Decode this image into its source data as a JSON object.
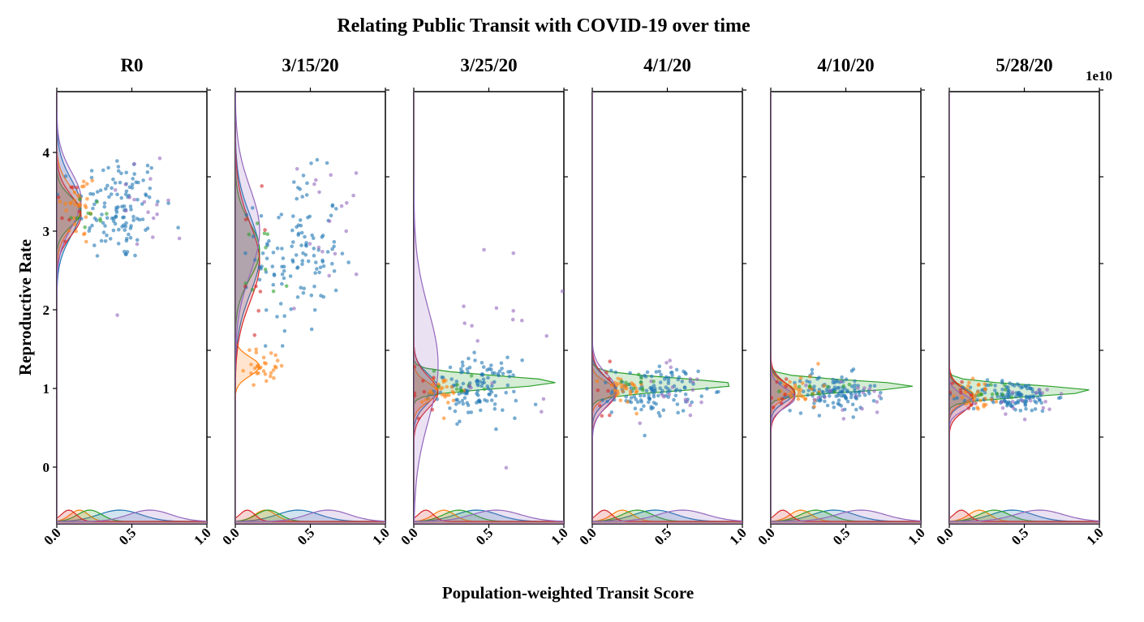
{
  "chart_data": {
    "type": "scatter",
    "title": "Relating Public Transit with COVID-19 over time",
    "xlabel": "Population-weighted Transit Score",
    "ylabel": "Reproductive Rate",
    "xlim": [
      0.0,
      1.0
    ],
    "ylim": [
      -0.72,
      4.8
    ],
    "x_ticks": [
      0.0,
      0.5,
      1.0
    ],
    "x_tick_labels": [
      "0.0",
      "0.5",
      "1.0"
    ],
    "y_ticks": [
      0,
      1,
      2,
      3,
      4
    ],
    "y_tick_labels": [
      "0",
      "1",
      "2",
      "3",
      "4"
    ],
    "offset_text": "1e10",
    "grid": false,
    "legend": "none",
    "series_colors": [
      "#1f77b4",
      "#ff7f0e",
      "#2ca02c",
      "#d62728",
      "#9467bd"
    ],
    "panels": [
      {
        "title": "R0",
        "groups": [
          {
            "x_mean": 0.42,
            "x_sd": 0.14,
            "y_mean": 3.3,
            "y_sd": 0.35,
            "n": 120
          },
          {
            "x_mean": 0.15,
            "x_sd": 0.06,
            "y_mean": 3.3,
            "y_sd": 0.25,
            "n": 30
          },
          {
            "x_mean": 0.22,
            "x_sd": 0.08,
            "y_mean": 3.25,
            "y_sd": 0.18,
            "n": 10
          },
          {
            "x_mean": 0.08,
            "x_sd": 0.05,
            "y_mean": 3.2,
            "y_sd": 0.25,
            "n": 8
          },
          {
            "x_mean": 0.62,
            "x_sd": 0.14,
            "y_mean": 3.4,
            "y_sd": 0.35,
            "n": 18
          }
        ]
      },
      {
        "title": "3/15/20",
        "groups": [
          {
            "x_mean": 0.42,
            "x_sd": 0.14,
            "y_mean": 2.7,
            "y_sd": 0.5,
            "n": 120
          },
          {
            "x_mean": 0.2,
            "x_sd": 0.07,
            "y_mean": 1.28,
            "y_sd": 0.12,
            "n": 30
          },
          {
            "x_mean": 0.22,
            "x_sd": 0.08,
            "y_mean": 2.75,
            "y_sd": 0.35,
            "n": 10
          },
          {
            "x_mean": 0.08,
            "x_sd": 0.05,
            "y_mean": 2.6,
            "y_sd": 0.5,
            "n": 8
          },
          {
            "x_mean": 0.62,
            "x_sd": 0.14,
            "y_mean": 3.0,
            "y_sd": 0.55,
            "n": 18
          }
        ]
      },
      {
        "title": "3/25/20",
        "groups": [
          {
            "x_mean": 0.42,
            "x_sd": 0.14,
            "y_mean": 1.0,
            "y_sd": 0.18,
            "n": 120
          },
          {
            "x_mean": 0.2,
            "x_sd": 0.07,
            "y_mean": 0.95,
            "y_sd": 0.12,
            "n": 30
          },
          {
            "x_mean": 0.3,
            "x_sd": 0.1,
            "y_mean": 1.08,
            "y_sd": 0.08,
            "n": 10
          },
          {
            "x_mean": 0.08,
            "x_sd": 0.05,
            "y_mean": 0.95,
            "y_sd": 0.2,
            "n": 8
          },
          {
            "x_mean": 0.55,
            "x_sd": 0.16,
            "y_mean": 1.3,
            "y_sd": 0.7,
            "n": 18
          }
        ]
      },
      {
        "title": "4/1/20",
        "groups": [
          {
            "x_mean": 0.42,
            "x_sd": 0.14,
            "y_mean": 0.98,
            "y_sd": 0.15,
            "n": 120
          },
          {
            "x_mean": 0.2,
            "x_sd": 0.07,
            "y_mean": 0.98,
            "y_sd": 0.1,
            "n": 30
          },
          {
            "x_mean": 0.3,
            "x_sd": 0.1,
            "y_mean": 1.05,
            "y_sd": 0.08,
            "n": 10
          },
          {
            "x_mean": 0.08,
            "x_sd": 0.05,
            "y_mean": 0.95,
            "y_sd": 0.18,
            "n": 8
          },
          {
            "x_mean": 0.6,
            "x_sd": 0.16,
            "y_mean": 0.98,
            "y_sd": 0.2,
            "n": 18
          }
        ]
      },
      {
        "title": "4/10/20",
        "groups": [
          {
            "x_mean": 0.42,
            "x_sd": 0.14,
            "y_mean": 0.95,
            "y_sd": 0.12,
            "n": 120
          },
          {
            "x_mean": 0.2,
            "x_sd": 0.07,
            "y_mean": 0.97,
            "y_sd": 0.1,
            "n": 30
          },
          {
            "x_mean": 0.3,
            "x_sd": 0.1,
            "y_mean": 1.03,
            "y_sd": 0.07,
            "n": 10
          },
          {
            "x_mean": 0.08,
            "x_sd": 0.05,
            "y_mean": 0.92,
            "y_sd": 0.15,
            "n": 8
          },
          {
            "x_mean": 0.6,
            "x_sd": 0.16,
            "y_mean": 0.88,
            "y_sd": 0.12,
            "n": 18
          }
        ]
      },
      {
        "title": "5/28/20",
        "groups": [
          {
            "x_mean": 0.42,
            "x_sd": 0.14,
            "y_mean": 0.9,
            "y_sd": 0.1,
            "n": 120
          },
          {
            "x_mean": 0.2,
            "x_sd": 0.07,
            "y_mean": 0.92,
            "y_sd": 0.1,
            "n": 30
          },
          {
            "x_mean": 0.3,
            "x_sd": 0.1,
            "y_mean": 0.97,
            "y_sd": 0.07,
            "n": 10
          },
          {
            "x_mean": 0.08,
            "x_sd": 0.05,
            "y_mean": 0.85,
            "y_sd": 0.14,
            "n": 8
          },
          {
            "x_mean": 0.6,
            "x_sd": 0.16,
            "y_mean": 0.82,
            "y_sd": 0.1,
            "n": 18
          }
        ]
      }
    ]
  }
}
